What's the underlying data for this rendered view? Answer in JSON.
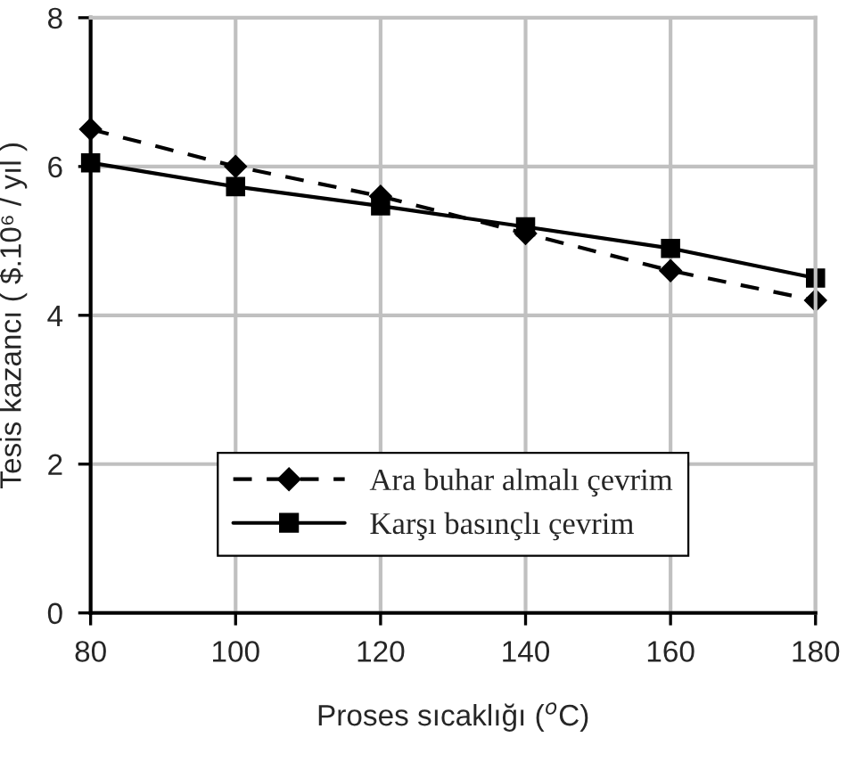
{
  "chart_data": {
    "type": "line",
    "xlabel": "Proses sıcaklığı ($^{o}$C)",
    "ylabel": "Tesis kazancı ( $.10⁶ / yıl )",
    "x": [
      80,
      100,
      120,
      140,
      160,
      180
    ],
    "series": [
      {
        "name": "Ara buhar almalı çevrim",
        "color": "#000000",
        "marker": "diamond",
        "line_style": "dashed",
        "values": [
          6.5,
          6.0,
          5.6,
          5.1,
          4.6,
          4.2
        ]
      },
      {
        "name": "Karşı basınçlı çevrim",
        "color": "#000000",
        "marker": "square",
        "line_style": "solid",
        "values": [
          6.05,
          5.73,
          5.47,
          5.19,
          4.9,
          4.5
        ]
      }
    ],
    "xlim": [
      80,
      180
    ],
    "xticks": [
      80,
      100,
      120,
      140,
      160,
      180
    ],
    "ylim": [
      0,
      8
    ],
    "yticks": [
      0,
      2,
      4,
      6,
      8
    ],
    "grid": true,
    "legend": "bottom"
  }
}
